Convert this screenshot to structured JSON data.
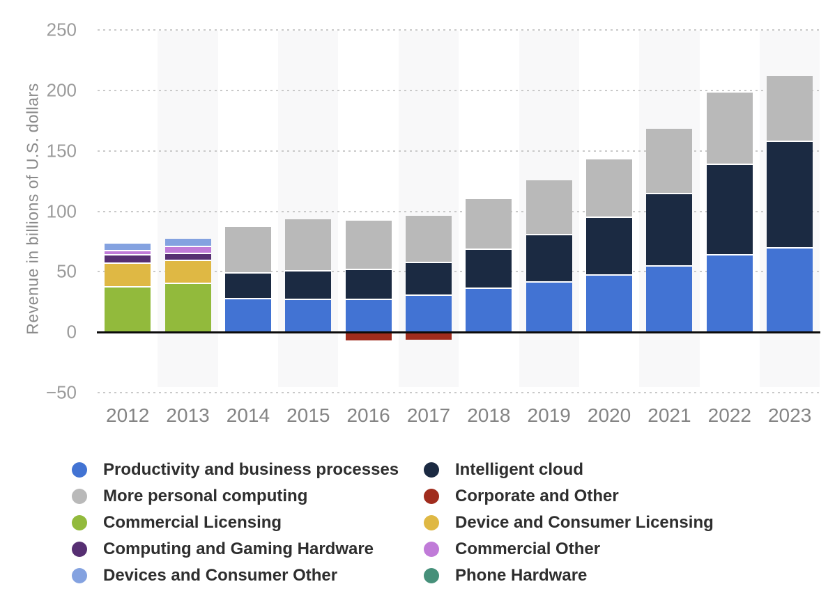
{
  "chart_data": {
    "type": "bar",
    "stacked": true,
    "title": "",
    "ylabel": "Revenue in billions of U.S. dollars",
    "xlabel": "",
    "ylim": [
      -50,
      250
    ],
    "grid": "horizontal-dotted",
    "legend_position": "bottom",
    "yticks": [
      {
        "label": "250",
        "value": 250
      },
      {
        "label": "200",
        "value": 200
      },
      {
        "label": "150",
        "value": 150
      },
      {
        "label": "100",
        "value": 100
      },
      {
        "label": "50",
        "value": 50
      },
      {
        "label": "0",
        "value": 0
      },
      {
        "label": "−50",
        "value": -50
      }
    ],
    "categories": [
      "2012",
      "2013",
      "2014",
      "2015",
      "2016",
      "2017",
      "2018",
      "2019",
      "2020",
      "2021",
      "2022",
      "2023"
    ],
    "series": [
      {
        "name": "Productivity and business processes",
        "color": "#4273d3"
      },
      {
        "name": "Intelligent cloud",
        "color": "#1b2a42"
      },
      {
        "name": "More personal computing",
        "color": "#b9b9b9"
      },
      {
        "name": "Corporate and Other",
        "color": "#a02c1d"
      },
      {
        "name": "Commercial Licensing",
        "color": "#92ba3c"
      },
      {
        "name": "Device and Consumer Licensing",
        "color": "#dfb844"
      },
      {
        "name": "Computing and Gaming Hardware",
        "color": "#562f72"
      },
      {
        "name": "Commercial Other",
        "color": "#c07bd8"
      },
      {
        "name": "Devices and Consumer Other",
        "color": "#84a2e0"
      },
      {
        "name": "Phone Hardware",
        "color": "#46907a"
      }
    ],
    "bars": [
      {
        "category": "2012",
        "stack": [
          {
            "series": "Commercial Licensing",
            "value": 37.1
          },
          {
            "series": "Device and Consumer Licensing",
            "value": 19.5
          },
          {
            "series": "Computing and Gaming Hardware",
            "value": 6.7
          },
          {
            "series": "Commercial Other",
            "value": 3.7
          },
          {
            "series": "Devices and Consumer Other",
            "value": 6.2
          }
        ],
        "negative": []
      },
      {
        "category": "2013",
        "stack": [
          {
            "series": "Commercial Licensing",
            "value": 39.7
          },
          {
            "series": "Device and Consumer Licensing",
            "value": 19.0
          },
          {
            "series": "Computing and Gaming Hardware",
            "value": 6.1
          },
          {
            "series": "Commercial Other",
            "value": 5.7
          },
          {
            "series": "Devices and Consumer Other",
            "value": 6.9
          }
        ],
        "negative": []
      },
      {
        "category": "2014",
        "stack": [
          {
            "series": "Productivity and business processes",
            "value": 26.98
          },
          {
            "series": "Intelligent cloud",
            "value": 21.33
          },
          {
            "series": "More personal computing",
            "value": 38.46
          }
        ],
        "negative": []
      },
      {
        "category": "2015",
        "stack": [
          {
            "series": "Productivity and business processes",
            "value": 26.43
          },
          {
            "series": "Intelligent cloud",
            "value": 23.72
          },
          {
            "series": "More personal computing",
            "value": 43.16
          }
        ],
        "negative": []
      },
      {
        "category": "2016",
        "stack": [
          {
            "series": "Productivity and business processes",
            "value": 26.49
          },
          {
            "series": "Intelligent cloud",
            "value": 25.04
          },
          {
            "series": "More personal computing",
            "value": 40.46
          }
        ],
        "negative": [
          {
            "series": "Corporate and Other",
            "value": -6.67
          }
        ]
      },
      {
        "category": "2017",
        "stack": [
          {
            "series": "Productivity and business processes",
            "value": 29.87
          },
          {
            "series": "Intelligent cloud",
            "value": 27.41
          },
          {
            "series": "More personal computing",
            "value": 38.77
          }
        ],
        "negative": [
          {
            "series": "Corporate and Other",
            "value": -6.1
          }
        ]
      },
      {
        "category": "2018",
        "stack": [
          {
            "series": "Productivity and business processes",
            "value": 35.87
          },
          {
            "series": "Intelligent cloud",
            "value": 32.22
          },
          {
            "series": "More personal computing",
            "value": 42.28
          }
        ],
        "negative": []
      },
      {
        "category": "2019",
        "stack": [
          {
            "series": "Productivity and business processes",
            "value": 41.16
          },
          {
            "series": "Intelligent cloud",
            "value": 38.99
          },
          {
            "series": "More personal computing",
            "value": 45.7
          }
        ],
        "negative": []
      },
      {
        "category": "2020",
        "stack": [
          {
            "series": "Productivity and business processes",
            "value": 46.4
          },
          {
            "series": "Intelligent cloud",
            "value": 48.37
          },
          {
            "series": "More personal computing",
            "value": 48.25
          }
        ],
        "negative": []
      },
      {
        "category": "2021",
        "stack": [
          {
            "series": "Productivity and business processes",
            "value": 53.92
          },
          {
            "series": "Intelligent cloud",
            "value": 60.08
          },
          {
            "series": "More personal computing",
            "value": 54.09
          }
        ],
        "negative": []
      },
      {
        "category": "2022",
        "stack": [
          {
            "series": "Productivity and business processes",
            "value": 63.36
          },
          {
            "series": "Intelligent cloud",
            "value": 75.25
          },
          {
            "series": "More personal computing",
            "value": 59.66
          }
        ],
        "negative": []
      },
      {
        "category": "2023",
        "stack": [
          {
            "series": "Productivity and business processes",
            "value": 69.27
          },
          {
            "series": "Intelligent cloud",
            "value": 87.91
          },
          {
            "series": "More personal computing",
            "value": 54.73
          }
        ],
        "negative": []
      }
    ],
    "legend": {
      "columns": [
        [
          "Productivity and business processes",
          "More personal computing",
          "Commercial Licensing",
          "Computing and Gaming Hardware",
          "Devices and Consumer Other"
        ],
        [
          "Intelligent cloud",
          "Corporate and Other",
          "Device and Consumer Licensing",
          "Commercial Other",
          "Phone Hardware"
        ]
      ]
    }
  }
}
